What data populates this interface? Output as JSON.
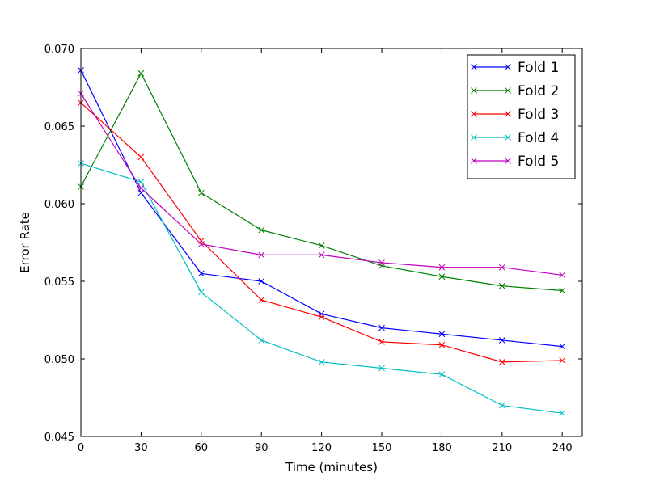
{
  "chart_data": {
    "type": "line",
    "title": "",
    "xlabel": "Time (minutes)",
    "ylabel": "Error Rate",
    "x": [
      0,
      30,
      60,
      90,
      120,
      150,
      180,
      210,
      240
    ],
    "xlim": [
      0,
      250
    ],
    "ylim": [
      0.045,
      0.07
    ],
    "xticks": [
      "0",
      "30",
      "60",
      "90",
      "120",
      "150",
      "180",
      "210",
      "240"
    ],
    "xtick_values": [
      0,
      30,
      60,
      90,
      120,
      150,
      180,
      210,
      240
    ],
    "yticks": [
      "0.045",
      "0.050",
      "0.055",
      "0.060",
      "0.065",
      "0.070"
    ],
    "ytick_values": [
      0.045,
      0.05,
      0.055,
      0.06,
      0.065,
      0.07
    ],
    "grid": false,
    "legend_position": "top-right",
    "marker": "x",
    "series": [
      {
        "name": "Fold 1",
        "color": "#0000ff",
        "values": [
          0.0686,
          0.0607,
          0.0555,
          0.055,
          0.0529,
          0.052,
          0.0516,
          0.0512,
          0.0508
        ]
      },
      {
        "name": "Fold 2",
        "color": "#008000",
        "values": [
          0.0611,
          0.0684,
          0.0607,
          0.0583,
          0.0573,
          0.056,
          0.0553,
          0.0547,
          0.0544
        ]
      },
      {
        "name": "Fold 3",
        "color": "#ff0000",
        "values": [
          0.0665,
          0.063,
          0.0576,
          0.0538,
          0.0527,
          0.0511,
          0.0509,
          0.0498,
          0.0499
        ]
      },
      {
        "name": "Fold 4",
        "color": "#00bfbf",
        "values": [
          0.0626,
          0.0614,
          0.0543,
          0.0512,
          0.0498,
          0.0494,
          0.049,
          0.047,
          0.0465
        ]
      },
      {
        "name": "Fold 5",
        "color": "#bf00bf",
        "values": [
          0.0671,
          0.061,
          0.0574,
          0.0567,
          0.0567,
          0.0562,
          0.0559,
          0.0559,
          0.0554
        ]
      }
    ]
  }
}
